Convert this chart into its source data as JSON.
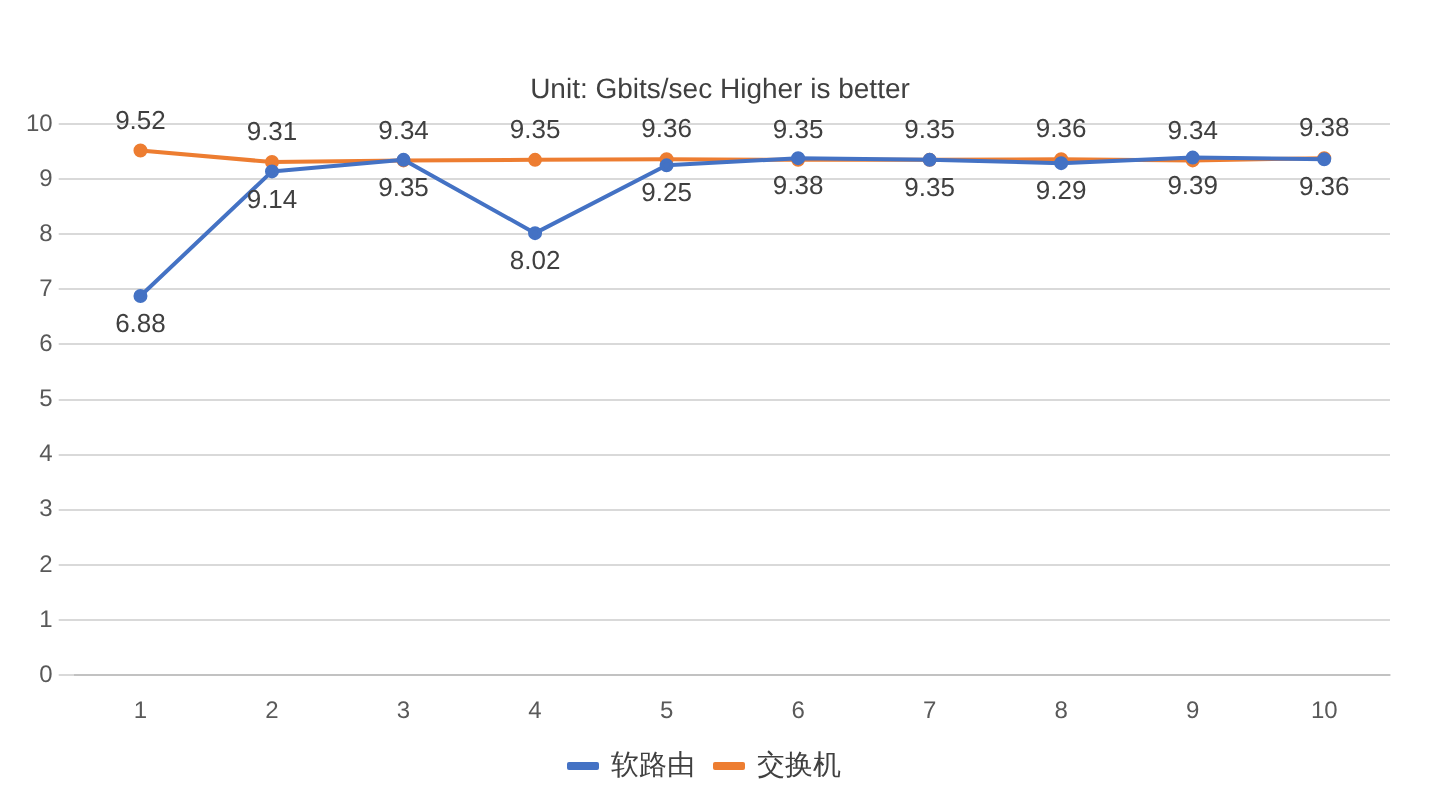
{
  "chart_data": {
    "type": "line",
    "subtitle": "Unit: Gbits/sec Higher is better",
    "categories": [
      "1",
      "2",
      "3",
      "4",
      "5",
      "6",
      "7",
      "8",
      "9",
      "10"
    ],
    "series": [
      {
        "name": "软路由",
        "color": "#4472c4",
        "values": [
          6.88,
          9.14,
          9.35,
          8.02,
          9.25,
          9.38,
          9.35,
          9.29,
          9.39,
          9.36
        ]
      },
      {
        "name": "交换机",
        "color": "#ed7d31",
        "values": [
          9.52,
          9.31,
          9.34,
          9.35,
          9.36,
          9.35,
          9.35,
          9.36,
          9.34,
          9.38
        ]
      }
    ],
    "ylim": [
      0,
      10
    ],
    "yticks": [
      0,
      1,
      2,
      3,
      4,
      5,
      6,
      7,
      8,
      9,
      10
    ],
    "grid": "y",
    "legend": "bottom",
    "marker": "circle",
    "line_style": "solid",
    "data_labels": true
  }
}
